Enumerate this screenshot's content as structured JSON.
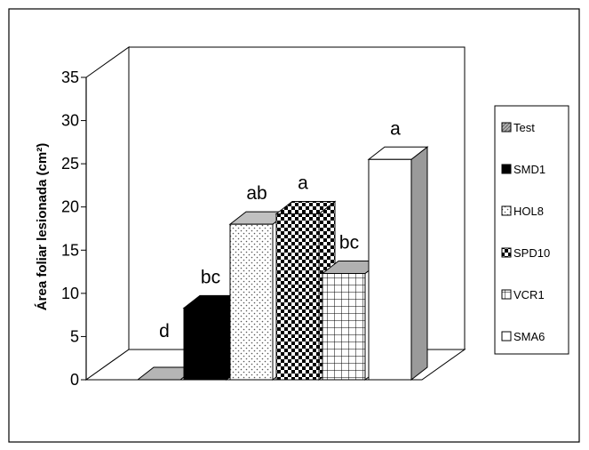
{
  "chart_data": {
    "type": "bar",
    "title": "",
    "xlabel": "",
    "ylabel": "Área foliar lesionada (cm²)",
    "ylim": [
      0,
      35
    ],
    "yticks": [
      0,
      5,
      10,
      15,
      20,
      25,
      30,
      35
    ],
    "grid": false,
    "legend_position": "right",
    "series": [
      {
        "name": "Test",
        "value": 0,
        "letter": "d",
        "fill": "hatch-grey"
      },
      {
        "name": "SMD1",
        "value": 8.3,
        "letter": "bc",
        "fill": "solid-black"
      },
      {
        "name": "HOL8",
        "value": 18.0,
        "letter": "ab",
        "fill": "dots"
      },
      {
        "name": "SPD10",
        "value": 19.2,
        "letter": "a",
        "fill": "checker"
      },
      {
        "name": "VCR1",
        "value": 12.3,
        "letter": "bc",
        "fill": "grid"
      },
      {
        "name": "SMA6",
        "value": 25.5,
        "letter": "a",
        "fill": "white"
      }
    ]
  }
}
